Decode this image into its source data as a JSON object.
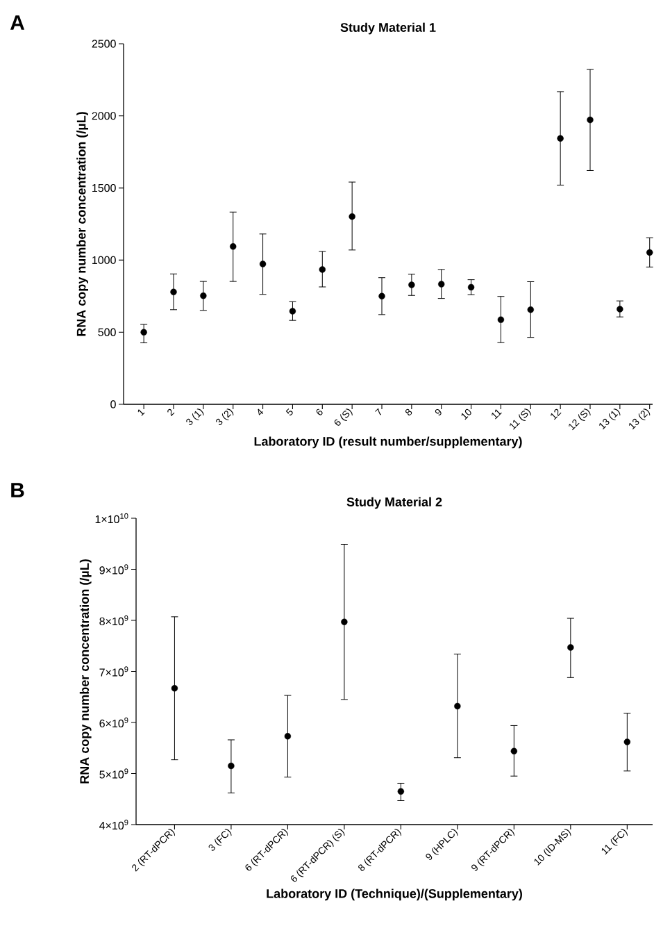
{
  "chart_data": [
    {
      "type": "scatter",
      "title": "Study  Material 1",
      "xlabel": "Laboratory ID (result number/supplementary)",
      "ylabel": "RNA copy number concentration (/µL)",
      "annotations": [
        "A"
      ],
      "categories": [
        "1",
        "2",
        "3 (1)",
        "3 (2)",
        "4",
        "5",
        "6",
        "6 (S)",
        "7",
        "8",
        "9",
        "10",
        "11",
        "11 (S)",
        "12",
        "12 (S)",
        "13 (1)",
        "13 (2)"
      ],
      "values": [
        500,
        779,
        753,
        1094,
        973,
        646,
        935,
        1302,
        750,
        828,
        833,
        812,
        587,
        656,
        1844,
        1972,
        660,
        1053
      ],
      "errors": [
        [
          426,
          554
        ],
        [
          656,
          904
        ],
        [
          651,
          852
        ],
        [
          852,
          1333
        ],
        [
          762,
          1181
        ],
        [
          582,
          712
        ],
        [
          814,
          1060
        ],
        [
          1070,
          1541
        ],
        [
          622,
          878
        ],
        [
          755,
          902
        ],
        [
          734,
          935
        ],
        [
          760,
          864
        ],
        [
          428,
          748
        ],
        [
          464,
          850
        ],
        [
          1520,
          2168
        ],
        [
          1621,
          2322
        ],
        [
          606,
          717
        ],
        [
          952,
          1155
        ]
      ],
      "color": "#000000",
      "marker": "circle",
      "grid": false,
      "ylim": [
        0,
        2500
      ],
      "yticks": [
        0,
        500,
        1000,
        1500,
        2000,
        2500
      ]
    },
    {
      "type": "scatter",
      "title": "Study Material 2",
      "xlabel": "Laboratory ID (Technique)/(Supplementary)",
      "ylabel": "RNA copy number concentration (/µL)",
      "annotations": [
        "B"
      ],
      "categories": [
        "2 (RT-dPCR)",
        "3 (FC)",
        "6 (RT-dPCR)",
        "6 (RT-dPCR) (S)",
        "8 (RT-dPCR)",
        "9 (HPLC)",
        "9 (RT-dPCR)",
        "10 (ID-MS)",
        "11 (FC)"
      ],
      "values": [
        6670000000,
        5150000000,
        5730000000,
        7970000000,
        4650000000,
        6320000000,
        5440000000,
        7470000000,
        5620000000
      ],
      "errors": [
        [
          5270000000,
          8070000000
        ],
        [
          4620000000,
          5660000000
        ],
        [
          4930000000,
          6530000000
        ],
        [
          6450000000,
          9490000000
        ],
        [
          4470000000,
          4810000000
        ],
        [
          5310000000,
          7340000000
        ],
        [
          4950000000,
          5940000000
        ],
        [
          6880000000,
          8040000000
        ],
        [
          5050000000,
          6180000000
        ]
      ],
      "color": "#000000",
      "marker": "circle",
      "grid": false,
      "ylim": [
        4000000000,
        10000000000
      ],
      "yticks": [
        {
          "value": 4000000000,
          "label": "4×10$^{9}$"
        },
        {
          "value": 5000000000,
          "label": "5×10$^{9}$"
        },
        {
          "value": 6000000000,
          "label": "6×10$^{9}$"
        },
        {
          "value": 7000000000,
          "label": "7×10$^{9}$"
        },
        {
          "value": 8000000000,
          "label": "8×10$^{9}$"
        },
        {
          "value": 9000000000,
          "label": "9×10$^{9}$"
        },
        {
          "value": 10000000000,
          "label": "1×10$^{10}$"
        }
      ]
    }
  ]
}
